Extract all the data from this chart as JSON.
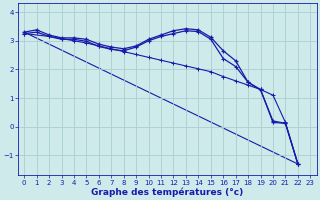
{
  "xlabel": "Graphe des températures (°c)",
  "background_color": "#ceeaea",
  "grid_color": "#aacfcf",
  "line_color": "#1a1aaa",
  "xlim": [
    -0.5,
    23.5
  ],
  "ylim": [
    -1.7,
    4.3
  ],
  "xticks": [
    0,
    1,
    2,
    3,
    4,
    5,
    6,
    7,
    8,
    9,
    10,
    11,
    12,
    13,
    14,
    15,
    16,
    17,
    18,
    19,
    20,
    21,
    22,
    23
  ],
  "yticks": [
    -1,
    0,
    1,
    2,
    3,
    4
  ],
  "series": [
    {
      "x": [
        0,
        1,
        2,
        3,
        4,
        5,
        6,
        7,
        8,
        9,
        10,
        11,
        12,
        13,
        14,
        15,
        16,
        17,
        18,
        19,
        20,
        21,
        22
      ],
      "y": [
        3.3,
        3.38,
        3.2,
        3.1,
        3.1,
        3.05,
        2.88,
        2.78,
        2.72,
        2.82,
        3.05,
        3.2,
        3.35,
        3.42,
        3.38,
        3.12,
        2.65,
        2.3,
        1.55,
        1.3,
        0.15,
        0.12,
        -1.3
      ],
      "marker": true
    },
    {
      "x": [
        0,
        1,
        2,
        3,
        4,
        5,
        6,
        7,
        8,
        9,
        10,
        11,
        12,
        13,
        14,
        15,
        16,
        17,
        18,
        19,
        20,
        21,
        22
      ],
      "y": [
        3.25,
        3.3,
        3.15,
        3.05,
        3.05,
        2.98,
        2.8,
        2.7,
        2.65,
        2.78,
        3.0,
        3.15,
        3.25,
        3.35,
        3.32,
        3.05,
        2.38,
        2.1,
        1.55,
        1.28,
        0.2,
        0.12,
        -1.3
      ],
      "marker": true
    },
    {
      "x": [
        0,
        2,
        4,
        5,
        6,
        7,
        8,
        9,
        10,
        11,
        12,
        13,
        14,
        15,
        16,
        17,
        18,
        19,
        20,
        21,
        22
      ],
      "y": [
        3.25,
        3.15,
        3.0,
        2.92,
        2.82,
        2.72,
        2.62,
        2.52,
        2.42,
        2.32,
        2.22,
        2.12,
        2.02,
        1.92,
        1.75,
        1.6,
        1.45,
        1.3,
        1.1,
        0.15,
        -1.3
      ],
      "marker": true
    },
    {
      "x": [
        0,
        22
      ],
      "y": [
        3.3,
        -1.3
      ],
      "marker": false
    }
  ]
}
